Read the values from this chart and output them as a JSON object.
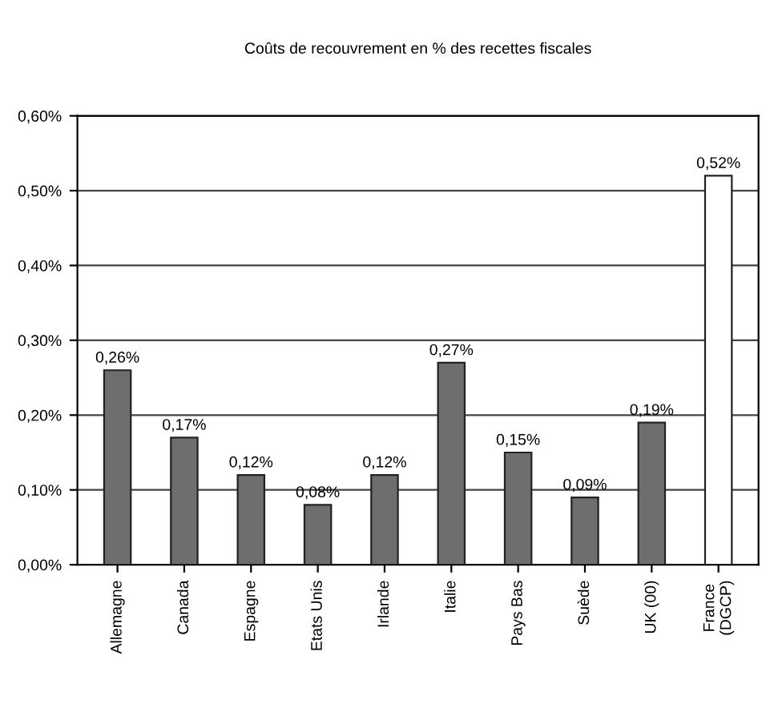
{
  "chart_data": {
    "type": "bar",
    "title": "Coûts de recouvrement en % des recettes fiscales",
    "categories": [
      "Allemagne",
      "Canada",
      "Espagne",
      "Etats Unis",
      "Irlande",
      "Italie",
      "Pays Bas",
      "Suède",
      "UK (00)",
      "France\n(DGCP)"
    ],
    "values": [
      0.26,
      0.17,
      0.12,
      0.08,
      0.12,
      0.27,
      0.15,
      0.09,
      0.19,
      0.52
    ],
    "value_labels": [
      "0,26%",
      "0,17%",
      "0,12%",
      "0,08%",
      "0,12%",
      "0,27%",
      "0,15%",
      "0,09%",
      "0,19%",
      "0,52%"
    ],
    "colors": [
      "#6e6e6e",
      "#6e6e6e",
      "#6e6e6e",
      "#6e6e6e",
      "#6e6e6e",
      "#6e6e6e",
      "#6e6e6e",
      "#6e6e6e",
      "#6e6e6e",
      "#ffffff"
    ],
    "ylim": [
      0,
      0.6
    ],
    "yticks": [
      {
        "value": 0,
        "label": "0,00%"
      },
      {
        "value": 0.1,
        "label": "0,10%"
      },
      {
        "value": 0.2,
        "label": "0,20%"
      },
      {
        "value": 0.3,
        "label": "0,30%"
      },
      {
        "value": 0.4,
        "label": "0,40%"
      },
      {
        "value": 0.5,
        "label": "0,50%"
      },
      {
        "value": 0.6,
        "label": "0,60%"
      }
    ],
    "grid": "y"
  }
}
